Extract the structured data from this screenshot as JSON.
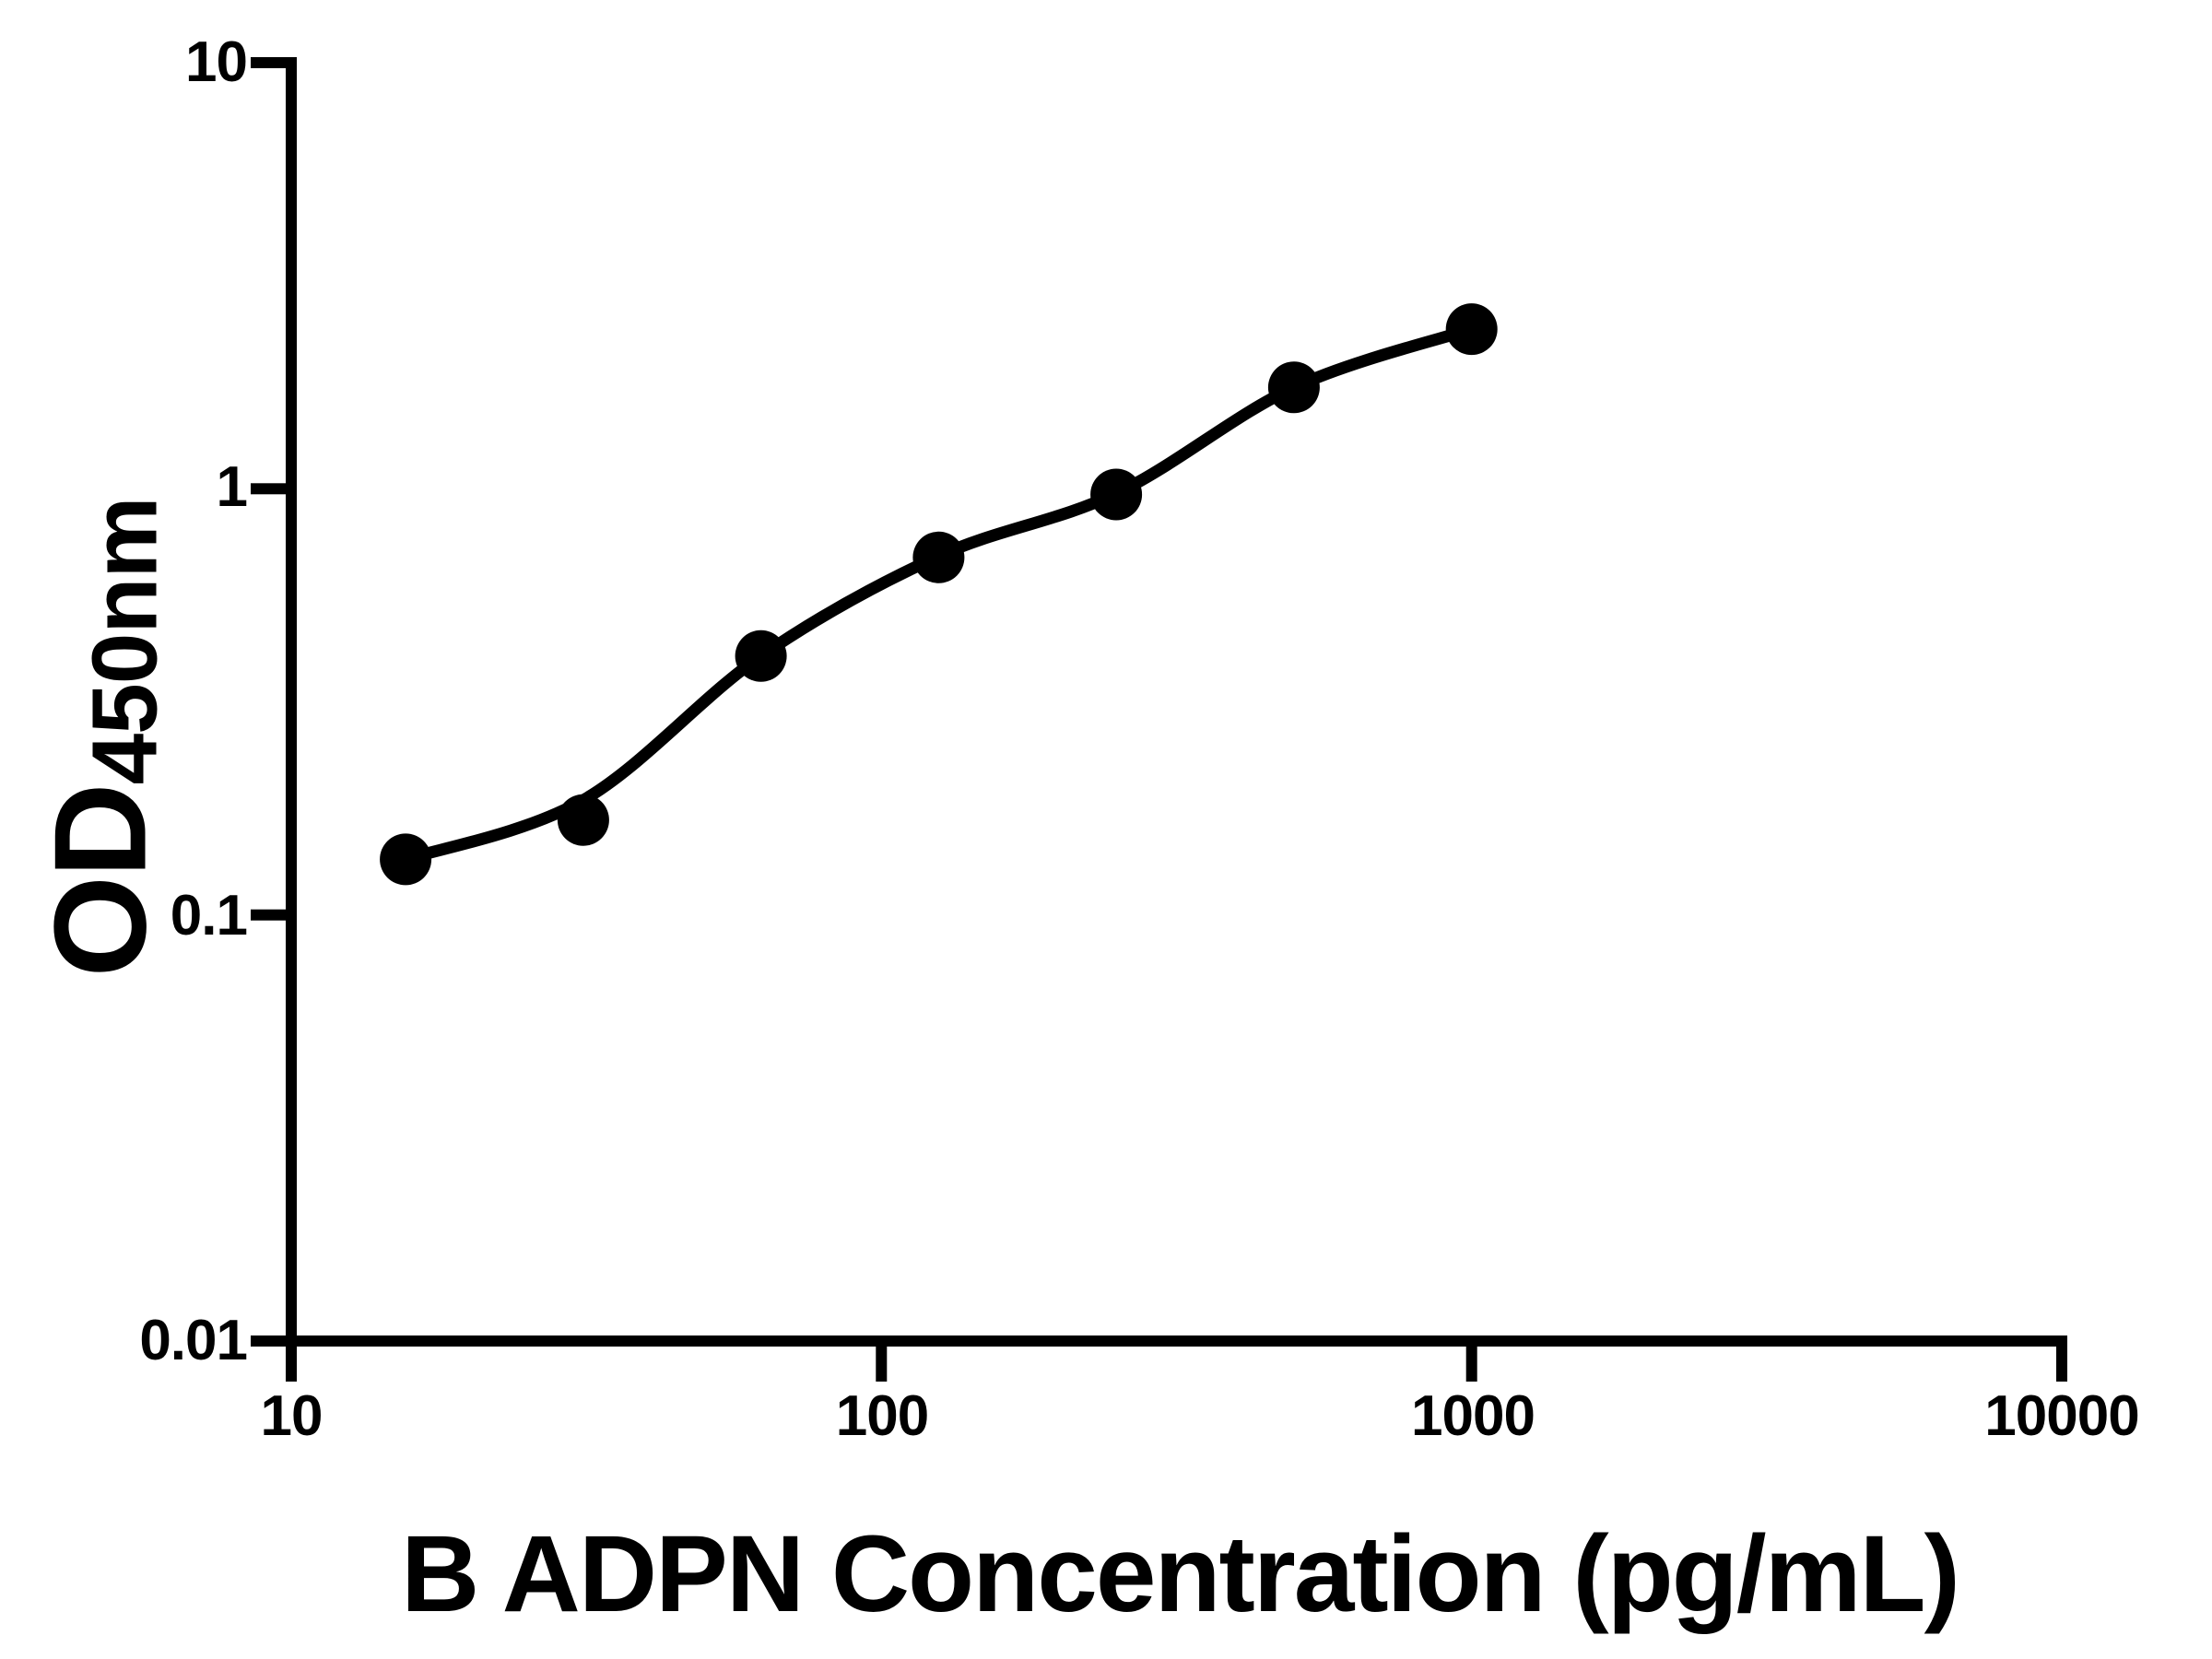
{
  "figure": {
    "x_axis_title": "B ADPN Concentration (pg/mL)",
    "y_axis_title_main": "OD",
    "y_axis_title_sub": "450nm"
  },
  "chart_data": {
    "type": "scatter",
    "x_scale": "log10",
    "y_scale": "log10",
    "xlabel": "B ADPN Concentration (pg/mL)",
    "ylabel": "OD450nm",
    "xlim": [
      10,
      10000
    ],
    "ylim": [
      0.01,
      10
    ],
    "x_ticks": [
      "10",
      "100",
      "1000",
      "10000"
    ],
    "x_tick_values": [
      10,
      100,
      1000,
      10000
    ],
    "y_ticks": [
      "10",
      "1",
      "0.1",
      "0.01"
    ],
    "y_tick_values": [
      10,
      1,
      0.1,
      0.01
    ],
    "grid": false,
    "legend": false,
    "axis_color": "#000000",
    "marker_color": "#000000",
    "line_color": "#000000",
    "points": [
      {
        "x": 15.625,
        "y": 0.135
      },
      {
        "x": 31.25,
        "y": 0.167
      },
      {
        "x": 62.5,
        "y": 0.405
      },
      {
        "x": 125,
        "y": 0.69
      },
      {
        "x": 250,
        "y": 0.97
      },
      {
        "x": 500,
        "y": 1.73
      },
      {
        "x": 1000,
        "y": 2.37
      }
    ],
    "fit_curve_points": [
      {
        "x": 15.625,
        "y": 0.135
      },
      {
        "x": 31.25,
        "y": 0.186
      },
      {
        "x": 62.5,
        "y": 0.405
      },
      {
        "x": 125,
        "y": 0.695
      },
      {
        "x": 250,
        "y": 0.975
      },
      {
        "x": 500,
        "y": 1.73
      },
      {
        "x": 1000,
        "y": 2.37
      }
    ]
  }
}
